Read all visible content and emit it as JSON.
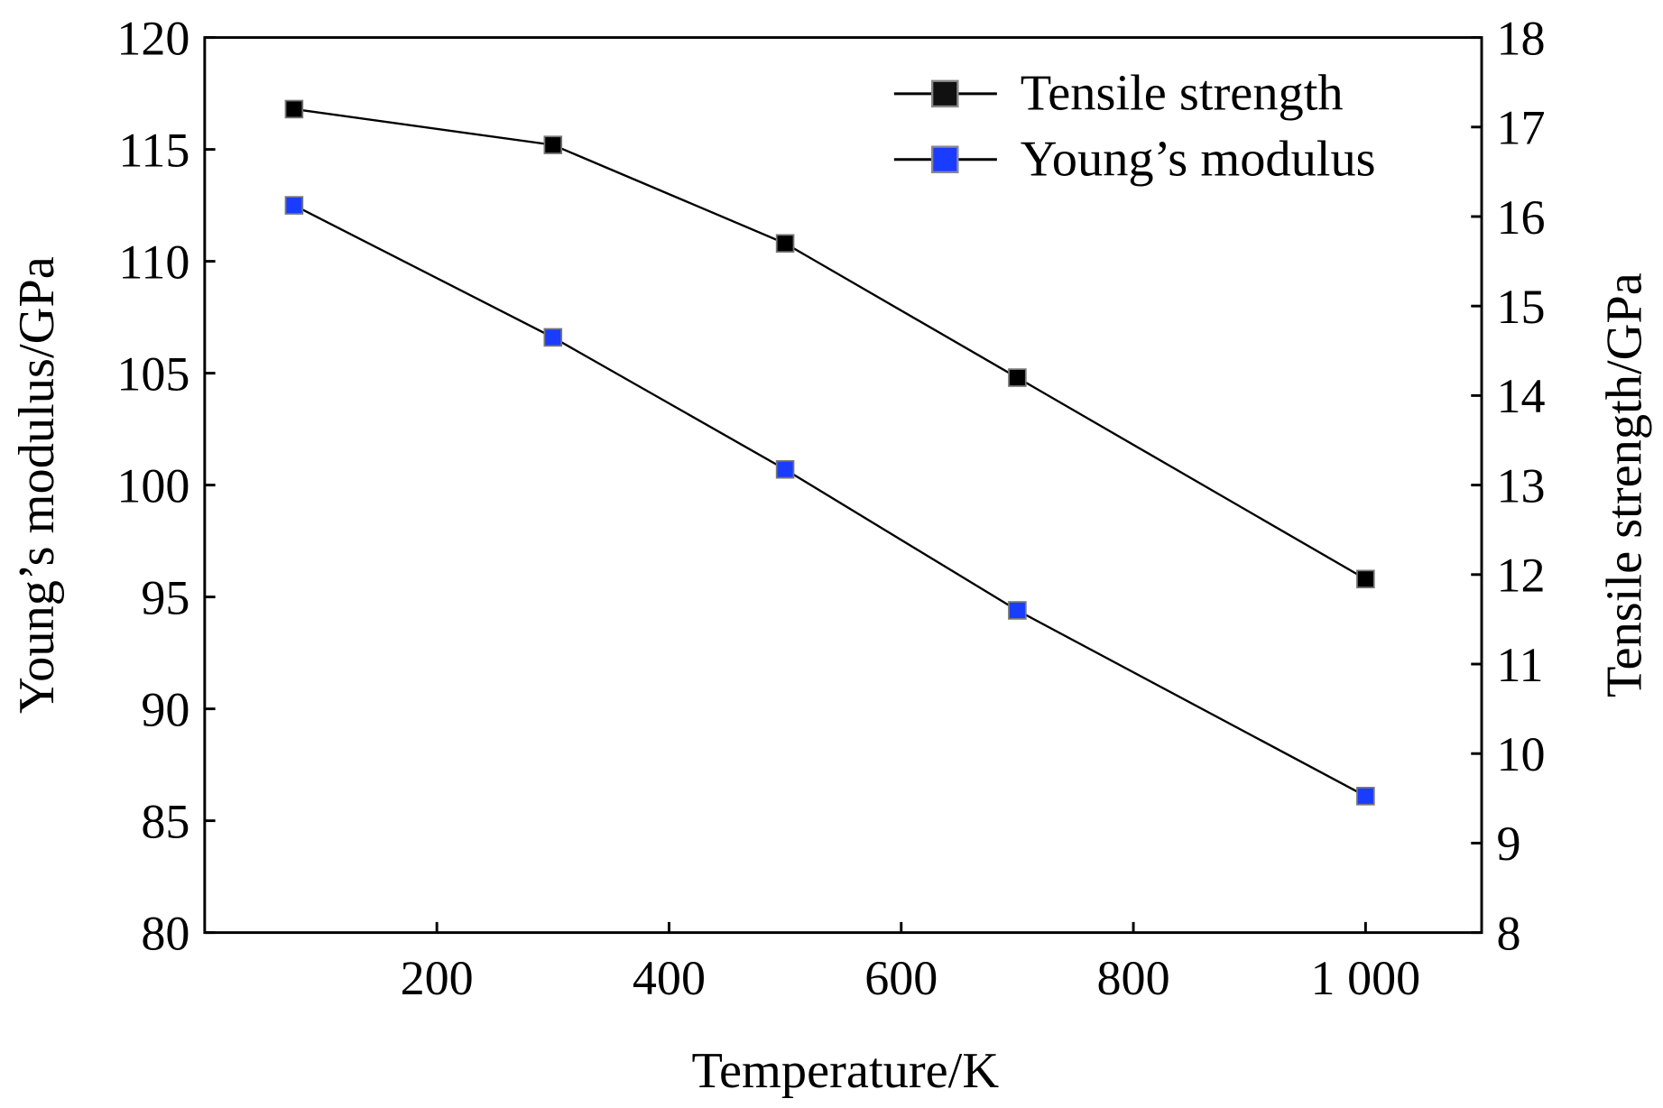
{
  "chart_data": {
    "type": "line",
    "title": "",
    "xlabel": "Temperature/K",
    "ylabel": "Young’s modulus/GPa",
    "y2label": "Tensile strength/GPa",
    "xlim": [
      0,
      1100
    ],
    "ylim": [
      80,
      120
    ],
    "y2lim": [
      8,
      18
    ],
    "xticks": [
      200,
      400,
      600,
      800,
      1000
    ],
    "xtick_labels": [
      "200",
      "400",
      "600",
      "800",
      "1 000"
    ],
    "yticks": [
      80,
      85,
      90,
      95,
      100,
      105,
      110,
      115,
      120
    ],
    "y2ticks": [
      8,
      9,
      10,
      11,
      12,
      13,
      14,
      15,
      16,
      17,
      18
    ],
    "grid": false,
    "legend_position": "top-right",
    "series": [
      {
        "name": "Tensile strength",
        "axis": "right",
        "color": "#000000",
        "x": [
          77,
          300,
          500,
          700,
          1000
        ],
        "y": [
          17.2,
          16.8,
          15.7,
          14.2,
          11.95
        ]
      },
      {
        "name": "Young’s modulus",
        "axis": "left",
        "color": "#1a3cff",
        "x": [
          77,
          300,
          500,
          700,
          1000
        ],
        "y": [
          112.5,
          106.6,
          100.7,
          94.4,
          86.1
        ]
      }
    ]
  }
}
